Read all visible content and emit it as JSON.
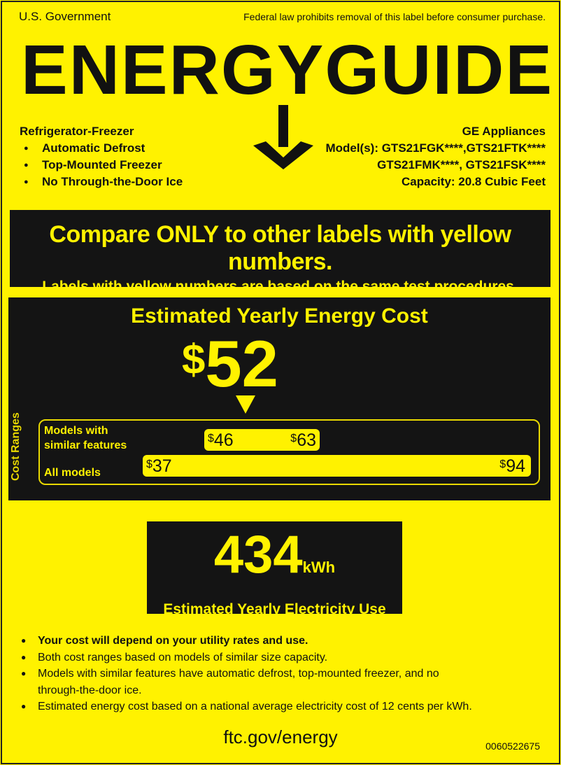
{
  "header": {
    "government": "U.S. Government",
    "law_notice": "Federal law prohibits removal of this label before consumer purchase.",
    "title": "ENERGYGUIDE"
  },
  "product": {
    "type": "Refrigerator-Freezer",
    "features": [
      "Automatic Defrost",
      "Top-Mounted Freezer",
      "No Through-the-Door Ice"
    ],
    "manufacturer": "GE Appliances",
    "models_line1": "Model(s): GTS21FGK****,GTS21FTK****",
    "models_line2": "GTS21FMK****, GTS21FSK****",
    "capacity": "Capacity: 20.8 Cubic Feet"
  },
  "compare": {
    "headline": "Compare ONLY to other labels with yellow numbers.",
    "subline": "Labels with yellow numbers are based on the same test procedures."
  },
  "cost": {
    "title": "Estimated Yearly Energy Cost",
    "currency": "$",
    "value": "52",
    "value_number": 52,
    "ranges_label": "Cost Ranges",
    "similar": {
      "label_line1": "Models with",
      "label_line2": "similar features",
      "min": "46",
      "max": "63"
    },
    "all": {
      "label": "All models",
      "min": "37",
      "max": "94"
    }
  },
  "electricity": {
    "value": "434",
    "unit": "kWh",
    "label": "Estimated Yearly Electricity Use"
  },
  "notes": [
    "Your cost will depend on your utility rates and use.",
    "Both cost ranges based on models of similar size capacity.",
    "Models with similar features have automatic defrost, top-mounted freezer, and no",
    "through-the-door ice.",
    "Estimated energy cost based on a national average electricity cost of 12 cents per kWh."
  ],
  "footer": {
    "url": "ftc.gov/energy",
    "serial": "0060522675"
  },
  "colors": {
    "background": "#fff200",
    "panel": "#141414"
  }
}
